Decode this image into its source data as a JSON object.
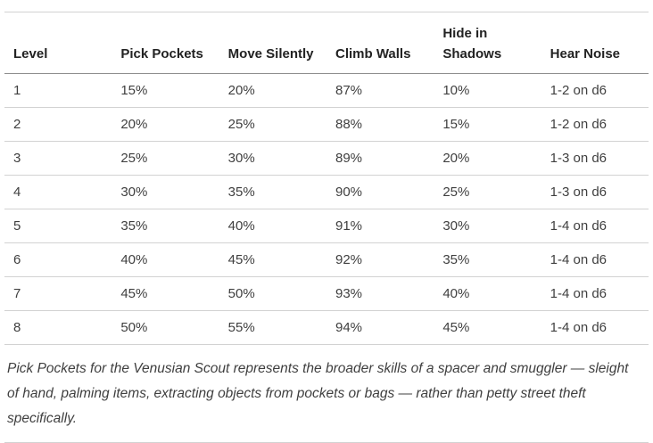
{
  "table": {
    "columns": [
      "Level",
      "Pick Pockets",
      "Move Silently",
      "Climb Walls",
      "Hide in Shadows",
      "Hear Noise"
    ],
    "rows": [
      [
        "1",
        "15%",
        "20%",
        "87%",
        "10%",
        "1-2 on d6"
      ],
      [
        "2",
        "20%",
        "25%",
        "88%",
        "15%",
        "1-2 on d6"
      ],
      [
        "3",
        "25%",
        "30%",
        "89%",
        "20%",
        "1-3 on d6"
      ],
      [
        "4",
        "30%",
        "35%",
        "90%",
        "25%",
        "1-3 on d6"
      ],
      [
        "5",
        "35%",
        "40%",
        "91%",
        "30%",
        "1-4 on d6"
      ],
      [
        "6",
        "40%",
        "45%",
        "92%",
        "35%",
        "1-4 on d6"
      ],
      [
        "7",
        "45%",
        "50%",
        "93%",
        "40%",
        "1-4 on d6"
      ],
      [
        "8",
        "50%",
        "55%",
        "94%",
        "45%",
        "1-4 on d6"
      ]
    ]
  },
  "chart_data": {
    "type": "table",
    "columns": [
      "Level",
      "Pick Pockets",
      "Move Silently",
      "Climb Walls",
      "Hide in Shadows",
      "Hear Noise"
    ],
    "rows": [
      [
        "1",
        "15%",
        "20%",
        "87%",
        "10%",
        "1-2 on d6"
      ],
      [
        "2",
        "20%",
        "25%",
        "88%",
        "15%",
        "1-2 on d6"
      ],
      [
        "3",
        "25%",
        "30%",
        "89%",
        "20%",
        "1-3 on d6"
      ],
      [
        "4",
        "30%",
        "35%",
        "90%",
        "25%",
        "1-3 on d6"
      ],
      [
        "5",
        "35%",
        "40%",
        "91%",
        "30%",
        "1-4 on d6"
      ],
      [
        "6",
        "40%",
        "45%",
        "92%",
        "35%",
        "1-4 on d6"
      ],
      [
        "7",
        "45%",
        "50%",
        "93%",
        "40%",
        "1-4 on d6"
      ],
      [
        "8",
        "50%",
        "55%",
        "94%",
        "45%",
        "1-4 on d6"
      ]
    ]
  },
  "footnote": {
    "text": "Pick Pockets for the Venusian Scout represents the broader skills of a spacer and smuggler — sleight of hand, palming items, extracting objects from pockets or bags — rather than petty street theft specifically."
  },
  "colors": {
    "background": "#ffffff",
    "header_text": "#222222",
    "body_text": "#3f3f3f",
    "rule_light": "#d2d2d2",
    "rule_dark": "#8f8f8f"
  }
}
